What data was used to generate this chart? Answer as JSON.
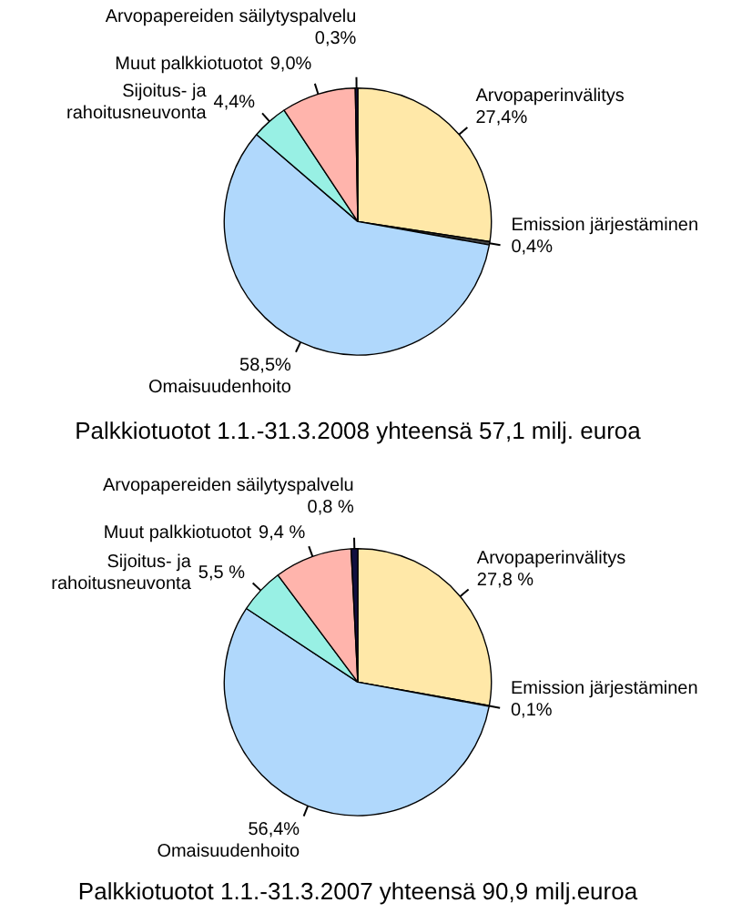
{
  "chart_data": [
    {
      "type": "pie",
      "title": "Palkkiotuotot 1.1.-31.3.2008 yhteensä 57,1 milj. euroa",
      "categories": [
        "Arvopaperinvälitys",
        "Emission järjestäminen",
        "Omaisuudenhoito",
        "Sijoitus- ja rahoitusneuvonta",
        "Muut palkkiotuotot",
        "Arvopapereiden säilytyspalvelu"
      ],
      "values": [
        27.4,
        0.4,
        58.5,
        4.4,
        9.0,
        0.3
      ],
      "value_labels": [
        "27,4%",
        "0,4%",
        "58,5%",
        "4,4%",
        "9,0%",
        "0,3%"
      ],
      "colors": [
        "#ffe8a8",
        "#404040",
        "#b0d8fc",
        "#98f0e4",
        "#ffb4ac",
        "#101040"
      ]
    },
    {
      "type": "pie",
      "title": "Palkkiotuotot 1.1.-31.3.2007 yhteensä 90,9 milj.euroa",
      "categories": [
        "Arvopaperinvälitys",
        "Emission järjestäminen",
        "Omaisuudenhoito",
        "Sijoitus- ja rahoitusneuvonta",
        "Muut palkkiotuotot",
        "Arvopapereiden säilytyspalvelu"
      ],
      "values": [
        27.8,
        0.1,
        56.4,
        5.5,
        9.4,
        0.8
      ],
      "value_labels": [
        "27,8 %",
        "0,1%",
        "56,4%",
        "5,5 %",
        "9,4 %",
        "0,8 %"
      ],
      "colors": [
        "#ffe8a8",
        "#404040",
        "#b0d8fc",
        "#98f0e4",
        "#ffb4ac",
        "#101040"
      ]
    }
  ]
}
